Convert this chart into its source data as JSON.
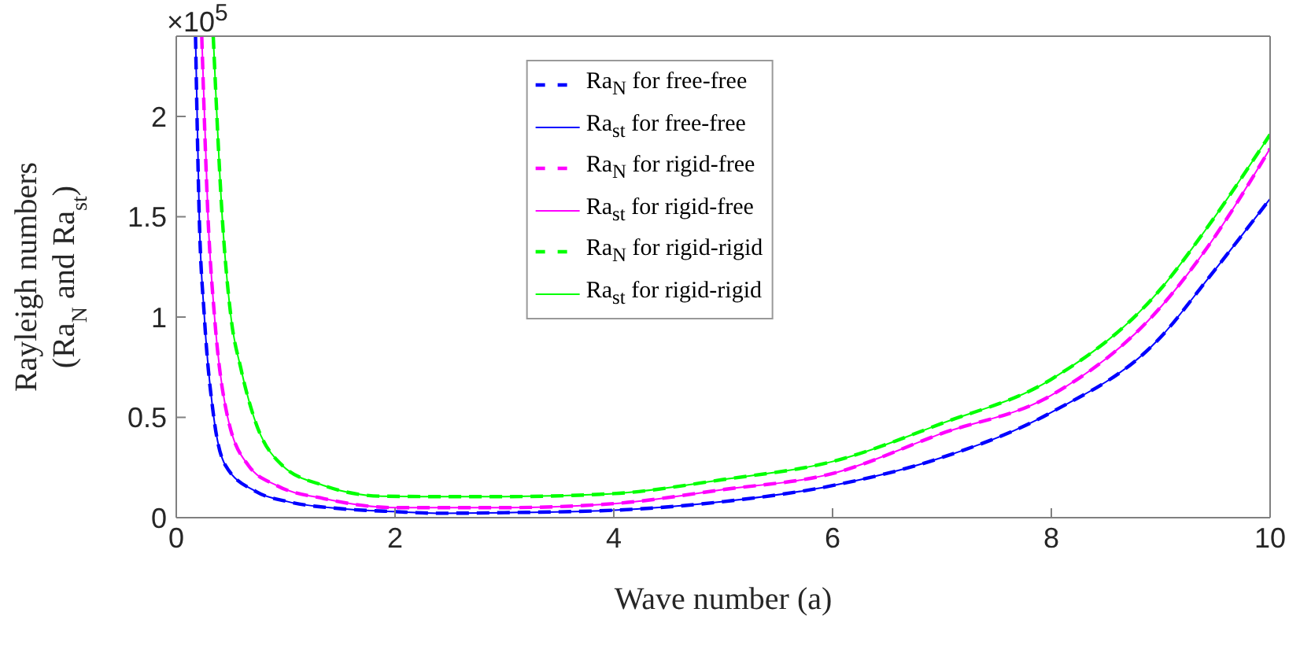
{
  "chart_data": {
    "type": "line",
    "xlabel": "Wave number (a)",
    "ylabel": "Rayleigh numbers\n(Ra$_{N}$ and Ra$_{st}$)",
    "annotations": [
      "×10$^{5}$"
    ],
    "xlim": [
      0,
      10
    ],
    "xticks": [
      0,
      2,
      4,
      6,
      8,
      10
    ],
    "ylim": [
      0,
      2.4
    ],
    "yticks": [
      0,
      0.5,
      1,
      1.5,
      2
    ],
    "legend": "top",
    "marker": "none",
    "series": [
      {
        "name": "Ra$_{N}$ for free-free",
        "color": "#0000ff",
        "line_style": "dashed",
        "x": [
          0.176,
          0.21,
          0.257,
          0.343,
          0.45,
          0.73,
          1.02,
          1.5,
          2,
          2.4,
          3,
          4,
          5,
          6,
          7,
          8,
          9,
          9.43,
          10
        ],
        "values": [
          2.4,
          1.5,
          1.0,
          0.5,
          0.26,
          0.13,
          0.08,
          0.045,
          0.03,
          0.022,
          0.025,
          0.037,
          0.08,
          0.16,
          0.3,
          0.525,
          0.9,
          1.19,
          1.59
        ]
      },
      {
        "name": "Ra$_{st}$ for free-free",
        "color": "#0000ff",
        "line_style": "solid",
        "x": [
          0.176,
          0.21,
          0.257,
          0.343,
          0.45,
          0.73,
          1.02,
          1.5,
          2,
          2.4,
          3,
          4,
          5,
          6,
          7,
          8,
          9,
          9.43,
          10
        ],
        "values": [
          2.4,
          1.5,
          1.0,
          0.5,
          0.26,
          0.13,
          0.08,
          0.045,
          0.03,
          0.022,
          0.025,
          0.037,
          0.08,
          0.16,
          0.3,
          0.525,
          0.9,
          1.19,
          1.59
        ]
      },
      {
        "name": "Ra$_{N}$ for rigid-free",
        "color": "#ff00ff",
        "line_style": "dashed",
        "x": [
          0.233,
          0.29,
          0.35,
          0.47,
          0.66,
          0.92,
          1.35,
          2,
          3,
          4,
          5,
          6,
          7,
          8,
          9,
          9.43,
          10
        ],
        "values": [
          2.4,
          1.5,
          1.0,
          0.5,
          0.26,
          0.16,
          0.095,
          0.05,
          0.05,
          0.07,
          0.14,
          0.22,
          0.42,
          0.61,
          1.05,
          1.35,
          1.84
        ]
      },
      {
        "name": "Ra$_{st}$ for rigid-free",
        "color": "#ff00ff",
        "line_style": "solid",
        "x": [
          0.233,
          0.29,
          0.35,
          0.47,
          0.66,
          0.92,
          1.35,
          2,
          3,
          4,
          5,
          6,
          7,
          8,
          9,
          9.43,
          10
        ],
        "values": [
          2.4,
          1.5,
          1.0,
          0.5,
          0.26,
          0.16,
          0.095,
          0.05,
          0.05,
          0.07,
          0.14,
          0.22,
          0.42,
          0.61,
          1.05,
          1.35,
          1.84
        ]
      },
      {
        "name": "Ra$_{N}$ for rigid-rigid",
        "color": "#00ff00",
        "line_style": "dashed",
        "x": [
          0.338,
          0.42,
          0.5,
          0.59,
          0.71,
          0.97,
          1.35,
          1.88,
          2.4,
          3,
          4,
          5,
          6,
          7,
          8,
          9,
          9.43,
          10
        ],
        "values": [
          2.4,
          1.5,
          1.0,
          0.745,
          0.5,
          0.26,
          0.16,
          0.107,
          0.105,
          0.105,
          0.12,
          0.19,
          0.28,
          0.47,
          0.69,
          1.14,
          1.45,
          1.91
        ]
      },
      {
        "name": "Ra$_{st}$ for rigid-rigid",
        "color": "#00ff00",
        "line_style": "solid",
        "x": [
          0.338,
          0.42,
          0.5,
          0.59,
          0.71,
          0.97,
          1.35,
          1.88,
          2.4,
          3,
          4,
          5,
          6,
          7,
          8,
          9,
          9.43,
          10
        ],
        "values": [
          2.4,
          1.5,
          1.0,
          0.745,
          0.5,
          0.26,
          0.16,
          0.107,
          0.105,
          0.105,
          0.12,
          0.19,
          0.28,
          0.47,
          0.69,
          1.14,
          1.45,
          1.91
        ]
      }
    ]
  }
}
